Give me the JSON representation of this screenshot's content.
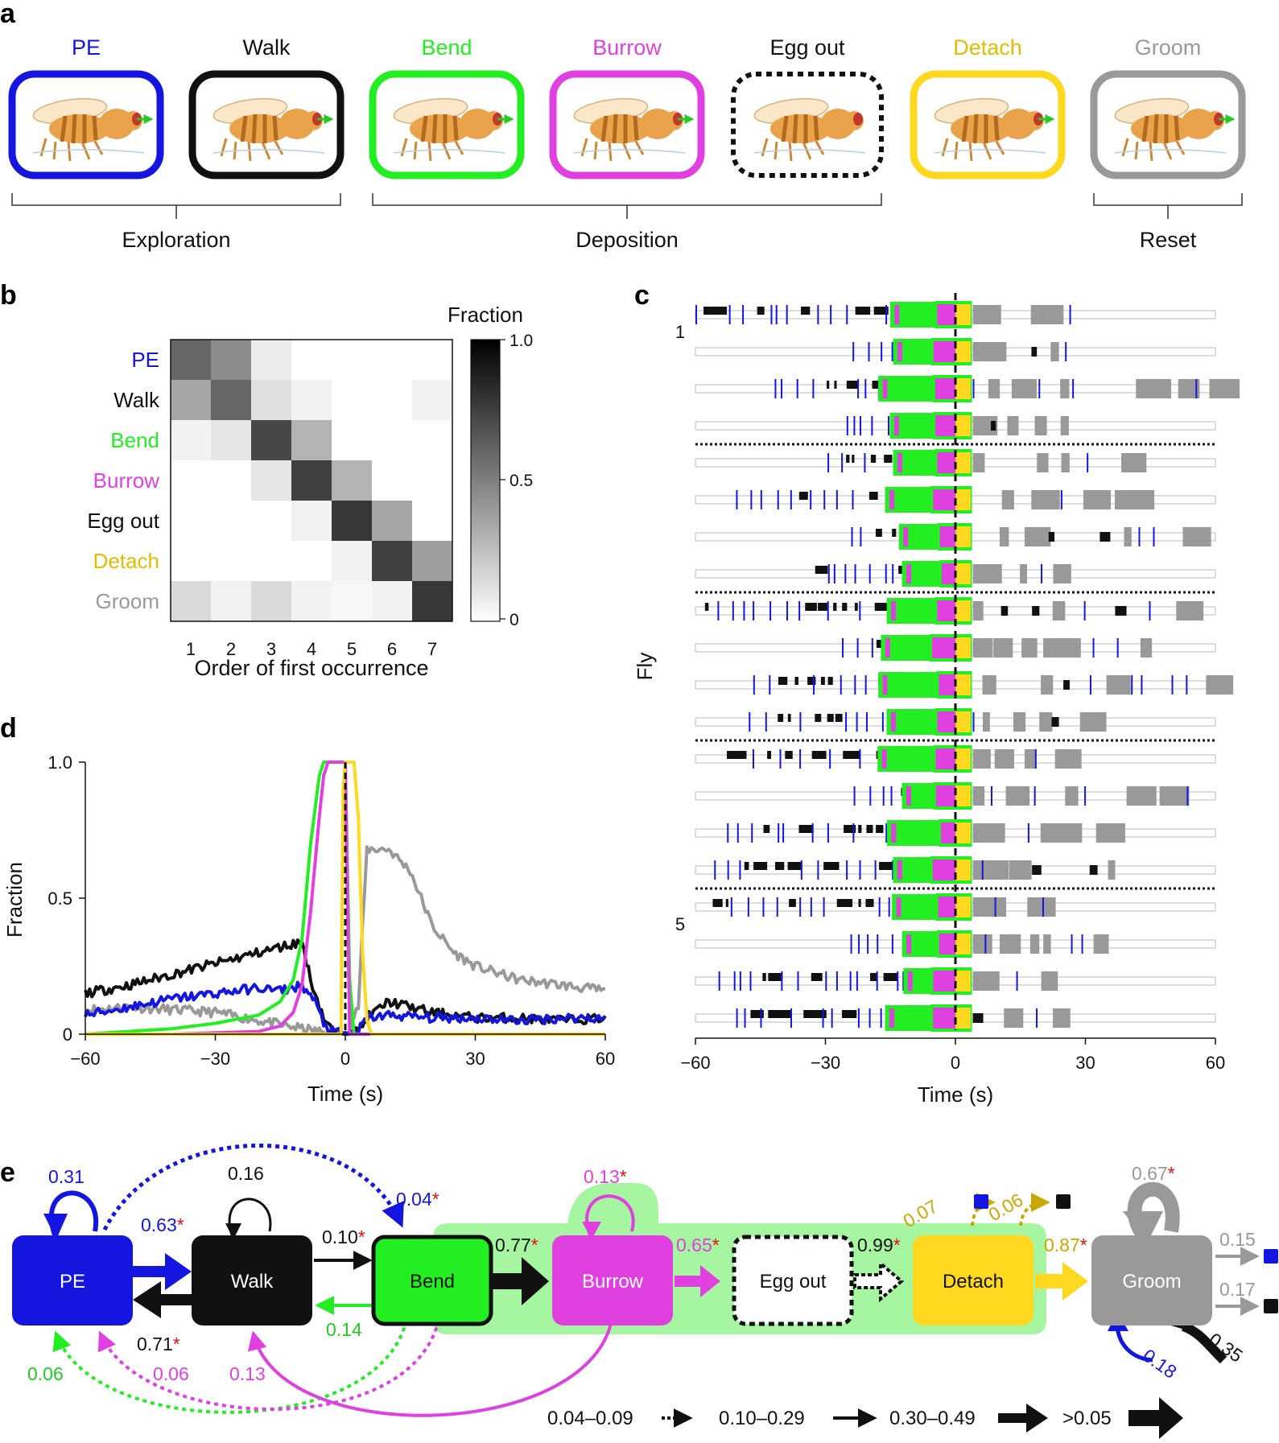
{
  "colors": {
    "pe": "#1515e0",
    "walk": "#111111",
    "bend": "#22ee22",
    "burrow": "#e040e0",
    "egg": "#111111",
    "detach": "#ffd820",
    "groom": "#999999",
    "red_star": "#e01010",
    "green_bg": "#a6f5a0",
    "fly_body": "#e9a34a",
    "fly_stripe": "#b26b1d",
    "fly_eye": "#c0392b",
    "wing": "#fbe7c9"
  },
  "panel_labels": {
    "a": "a",
    "b": "b",
    "c": "c",
    "d": "d",
    "e": "e"
  },
  "panel_a": {
    "behaviors": [
      {
        "label": "PE",
        "color": "pe",
        "dashed": false
      },
      {
        "label": "Walk",
        "color": "walk",
        "dashed": false
      },
      {
        "label": "Bend",
        "color": "bend",
        "dashed": false
      },
      {
        "label": "Burrow",
        "color": "burrow",
        "dashed": false
      },
      {
        "label": "Egg out",
        "color": "egg",
        "dashed": true
      },
      {
        "label": "Detach",
        "color": "detach",
        "dashed": false
      },
      {
        "label": "Groom",
        "color": "groom",
        "dashed": false
      }
    ],
    "groups": [
      {
        "label": "Exploration",
        "from": 0,
        "to": 1
      },
      {
        "label": "Deposition",
        "from": 2,
        "to": 4
      },
      {
        "label": "Reset",
        "from": 6,
        "to": 6
      }
    ]
  },
  "chart_data": [
    {
      "type": "heatmap",
      "id": "panel_b",
      "rows": [
        "PE",
        "Walk",
        "Bend",
        "Burrow",
        "Egg out",
        "Detach",
        "Groom"
      ],
      "row_colors": [
        "pe",
        "walk",
        "bend",
        "burrow",
        "egg",
        "detach",
        "groom"
      ],
      "columns": [
        "1",
        "2",
        "3",
        "4",
        "5",
        "6",
        "7"
      ],
      "values": [
        [
          0.6,
          0.45,
          0.08,
          0.0,
          0.0,
          0.0,
          0.0
        ],
        [
          0.35,
          0.6,
          0.12,
          0.05,
          0.0,
          0.0,
          0.05
        ],
        [
          0.05,
          0.1,
          0.72,
          0.3,
          0.0,
          0.0,
          0.0
        ],
        [
          0.0,
          0.0,
          0.1,
          0.75,
          0.3,
          0.0,
          0.0
        ],
        [
          0.0,
          0.0,
          0.0,
          0.05,
          0.78,
          0.35,
          0.0
        ],
        [
          0.0,
          0.0,
          0.0,
          0.0,
          0.05,
          0.75,
          0.38
        ],
        [
          0.15,
          0.05,
          0.15,
          0.05,
          0.03,
          0.05,
          0.78
        ]
      ],
      "xlabel": "Order of first occurrence",
      "colorbar_title": "Fraction",
      "colorbar_ticks": [
        "1.0",
        "0.5",
        "0"
      ]
    },
    {
      "type": "line",
      "id": "panel_d",
      "xlabel": "Time (s)",
      "ylabel": "Fraction",
      "xlim": [
        -60,
        60
      ],
      "ylim": [
        0,
        1
      ],
      "xticks": [
        "−60",
        "−30",
        "0",
        "30",
        "60"
      ],
      "yticks": [
        "0",
        "0.5",
        "1.0"
      ],
      "series": [
        {
          "name": "Groom",
          "color": "groom",
          "x": [
            -60,
            -50,
            -40,
            -30,
            -20,
            -10,
            -2,
            0,
            3,
            5,
            10,
            15,
            20,
            25,
            30,
            40,
            50,
            60
          ],
          "y": [
            0.09,
            0.1,
            0.09,
            0.08,
            0.05,
            0.02,
            0.0,
            0.0,
            0.1,
            0.68,
            0.68,
            0.6,
            0.4,
            0.3,
            0.25,
            0.2,
            0.18,
            0.16
          ]
        },
        {
          "name": "Walk",
          "color": "walk",
          "x": [
            -60,
            -50,
            -40,
            -30,
            -20,
            -15,
            -10,
            -8,
            -5,
            -3,
            0,
            3,
            5,
            10,
            15,
            20,
            30,
            40,
            50,
            60
          ],
          "y": [
            0.15,
            0.18,
            0.22,
            0.26,
            0.3,
            0.32,
            0.34,
            0.2,
            0.06,
            0.01,
            0.0,
            0.01,
            0.06,
            0.12,
            0.1,
            0.08,
            0.06,
            0.06,
            0.05,
            0.06
          ]
        },
        {
          "name": "PE",
          "color": "pe",
          "x": [
            -60,
            -50,
            -40,
            -30,
            -20,
            -15,
            -10,
            -7,
            -5,
            -3,
            0,
            3,
            5,
            10,
            20,
            30,
            40,
            50,
            60
          ],
          "y": [
            0.07,
            0.1,
            0.13,
            0.15,
            0.17,
            0.16,
            0.18,
            0.12,
            0.04,
            0.01,
            0.0,
            0.01,
            0.06,
            0.07,
            0.06,
            0.06,
            0.05,
            0.06,
            0.06
          ]
        },
        {
          "name": "Bend",
          "color": "bend",
          "x": [
            -60,
            -50,
            -40,
            -30,
            -20,
            -15,
            -12,
            -10,
            -8,
            -6,
            -5,
            -4,
            -2,
            0,
            1,
            2,
            60
          ],
          "y": [
            0.0,
            0.01,
            0.02,
            0.04,
            0.07,
            0.12,
            0.2,
            0.35,
            0.7,
            0.95,
            1.0,
            1.0,
            1.0,
            1.0,
            0.2,
            0.0,
            0.0
          ]
        },
        {
          "name": "Burrow",
          "color": "burrow",
          "x": [
            -60,
            -40,
            -20,
            -15,
            -12,
            -10,
            -8,
            -6,
            -5,
            -4,
            -3,
            -2,
            0,
            0.5,
            1,
            60
          ],
          "y": [
            0.0,
            0.0,
            0.01,
            0.03,
            0.08,
            0.18,
            0.45,
            0.8,
            0.95,
            1.0,
            1.0,
            1.0,
            1.0,
            0.5,
            0.0,
            0.0
          ]
        },
        {
          "name": "Detach",
          "color": "detach",
          "x": [
            -60,
            -1,
            -0.5,
            0,
            2,
            3,
            4,
            5,
            6,
            60
          ],
          "y": [
            0.0,
            0.0,
            0.9,
            1.0,
            1.0,
            0.8,
            0.3,
            0.05,
            0.0,
            0.0
          ]
        }
      ]
    },
    {
      "type": "raster",
      "id": "panel_c",
      "xlabel": "Time (s)",
      "ylabel": "Fly",
      "xlim": [
        -60,
        60
      ],
      "xticks": [
        "−60",
        "−30",
        "0",
        "30",
        "60"
      ],
      "fly_labels": [
        {
          "row": 1,
          "label": "1"
        },
        {
          "row": 17,
          "label": "5"
        }
      ],
      "separators_after_rows": [
        3,
        7,
        11,
        15
      ],
      "n_rows": 20
    }
  ],
  "panel_e": {
    "nodes": [
      {
        "key": "pe",
        "label": "PE"
      },
      {
        "key": "walk",
        "label": "Walk"
      },
      {
        "key": "bend",
        "label": "Bend"
      },
      {
        "key": "burrow",
        "label": "Burrow"
      },
      {
        "key": "egg",
        "label": "Egg out"
      },
      {
        "key": "detach",
        "label": "Detach"
      },
      {
        "key": "groom",
        "label": "Groom"
      }
    ],
    "edges": [
      {
        "label": "0.31",
        "star": false,
        "color": "pe"
      },
      {
        "label": "0.63",
        "star": true,
        "color": "pe"
      },
      {
        "label": "0.04",
        "star": true,
        "color": "pe"
      },
      {
        "label": "0.16",
        "star": false,
        "color": "walk"
      },
      {
        "label": "0.10",
        "star": true,
        "color": "walk"
      },
      {
        "label": "0.71",
        "star": true,
        "color": "walk"
      },
      {
        "label": "0.14",
        "star": false,
        "color": "bend"
      },
      {
        "label": "0.77",
        "star": true,
        "color": "walk"
      },
      {
        "label": "0.06",
        "star": false,
        "color": "bend"
      },
      {
        "label": "0.06",
        "star": false,
        "color": "burrow"
      },
      {
        "label": "0.13",
        "star": false,
        "color": "burrow"
      },
      {
        "label": "0.13",
        "star": true,
        "color": "burrow"
      },
      {
        "label": "0.65",
        "star": true,
        "color": "burrow"
      },
      {
        "label": "0.99",
        "star": true,
        "color": "walk"
      },
      {
        "label": "0.07",
        "star": false,
        "color": "detach"
      },
      {
        "label": "0.06",
        "star": false,
        "color": "detach"
      },
      {
        "label": "0.87",
        "star": true,
        "color": "detach"
      },
      {
        "label": "0.67",
        "star": true,
        "color": "groom"
      },
      {
        "label": "0.15",
        "star": false,
        "color": "groom"
      },
      {
        "label": "0.17",
        "star": false,
        "color": "groom"
      },
      {
        "label": "0.18",
        "star": false,
        "color": "pe"
      },
      {
        "label": "0.35",
        "star": false,
        "color": "walk"
      }
    ],
    "star_symbol": "*",
    "legend": [
      "0.04–0.09",
      "0.10–0.29",
      "0.30–0.49",
      ">0.05"
    ]
  }
}
